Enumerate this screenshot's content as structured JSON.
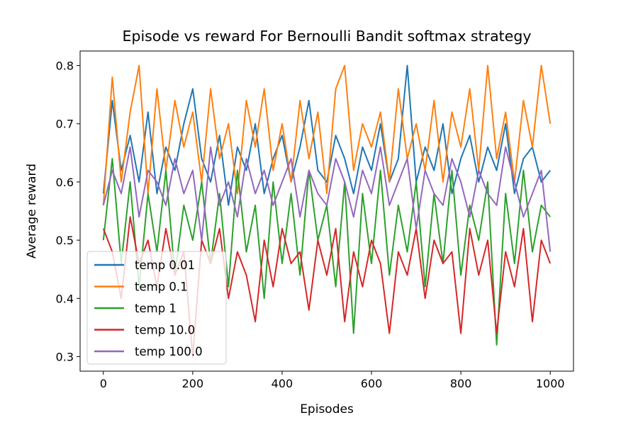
{
  "chart_data": {
    "type": "line",
    "title": "Episode vs reward For Bernoulli Bandit softmax strategy",
    "xlabel": "Episodes",
    "ylabel": "Average reward",
    "xlim": [
      -52,
      1052
    ],
    "ylim": [
      0.275,
      0.825
    ],
    "x_ticks": [
      0,
      200,
      400,
      600,
      800,
      1000
    ],
    "y_ticks": [
      0.3,
      0.4,
      0.5,
      0.6,
      0.7,
      0.8
    ],
    "x_tick_labels": [
      "0",
      "200",
      "400",
      "600",
      "800",
      "1000"
    ],
    "y_tick_labels": [
      "0.3",
      "0.4",
      "0.5",
      "0.6",
      "0.7",
      "0.8"
    ],
    "grid": false,
    "legend_position": "lower-left",
    "x": [
      0,
      20,
      40,
      60,
      80,
      100,
      120,
      140,
      160,
      180,
      200,
      220,
      240,
      260,
      280,
      300,
      320,
      340,
      360,
      380,
      400,
      420,
      440,
      460,
      480,
      500,
      520,
      540,
      560,
      580,
      600,
      620,
      640,
      660,
      680,
      700,
      720,
      740,
      760,
      780,
      800,
      820,
      840,
      860,
      880,
      900,
      920,
      940,
      960,
      980,
      1000
    ],
    "series": [
      {
        "name": "temp 0.01",
        "color": "#1f77b4",
        "values": [
          0.58,
          0.74,
          0.62,
          0.68,
          0.6,
          0.72,
          0.58,
          0.66,
          0.62,
          0.7,
          0.76,
          0.64,
          0.6,
          0.68,
          0.56,
          0.66,
          0.62,
          0.7,
          0.58,
          0.64,
          0.68,
          0.6,
          0.66,
          0.74,
          0.62,
          0.6,
          0.68,
          0.64,
          0.58,
          0.66,
          0.62,
          0.7,
          0.6,
          0.64,
          0.8,
          0.6,
          0.66,
          0.62,
          0.7,
          0.58,
          0.64,
          0.68,
          0.6,
          0.66,
          0.62,
          0.7,
          0.58,
          0.64,
          0.66,
          0.6,
          0.62
        ]
      },
      {
        "name": "temp 0.1",
        "color": "#ff7f0e",
        "values": [
          0.56,
          0.78,
          0.6,
          0.72,
          0.8,
          0.58,
          0.76,
          0.62,
          0.74,
          0.66,
          0.72,
          0.6,
          0.76,
          0.64,
          0.7,
          0.58,
          0.74,
          0.66,
          0.76,
          0.62,
          0.7,
          0.6,
          0.74,
          0.64,
          0.72,
          0.58,
          0.76,
          0.8,
          0.62,
          0.7,
          0.66,
          0.72,
          0.6,
          0.76,
          0.64,
          0.7,
          0.62,
          0.74,
          0.6,
          0.72,
          0.66,
          0.76,
          0.62,
          0.8,
          0.64,
          0.72,
          0.6,
          0.74,
          0.66,
          0.8,
          0.7
        ]
      },
      {
        "name": "temp 1",
        "color": "#2ca02c",
        "values": [
          0.5,
          0.64,
          0.46,
          0.6,
          0.42,
          0.58,
          0.48,
          0.62,
          0.44,
          0.56,
          0.5,
          0.6,
          0.46,
          0.58,
          0.42,
          0.62,
          0.48,
          0.56,
          0.4,
          0.6,
          0.46,
          0.58,
          0.44,
          0.62,
          0.5,
          0.56,
          0.42,
          0.6,
          0.34,
          0.58,
          0.46,
          0.62,
          0.44,
          0.56,
          0.48,
          0.6,
          0.42,
          0.58,
          0.46,
          0.62,
          0.44,
          0.56,
          0.5,
          0.6,
          0.32,
          0.58,
          0.46,
          0.62,
          0.48,
          0.56,
          0.54
        ]
      },
      {
        "name": "temp 10.0",
        "color": "#d62728",
        "values": [
          0.52,
          0.48,
          0.4,
          0.54,
          0.46,
          0.5,
          0.42,
          0.52,
          0.44,
          0.48,
          0.3,
          0.5,
          0.46,
          0.52,
          0.4,
          0.48,
          0.44,
          0.36,
          0.5,
          0.42,
          0.52,
          0.46,
          0.48,
          0.38,
          0.5,
          0.44,
          0.52,
          0.36,
          0.48,
          0.42,
          0.5,
          0.46,
          0.34,
          0.48,
          0.44,
          0.52,
          0.4,
          0.5,
          0.46,
          0.48,
          0.34,
          0.52,
          0.44,
          0.5,
          0.34,
          0.48,
          0.42,
          0.52,
          0.36,
          0.5,
          0.46
        ]
      },
      {
        "name": "temp 100.0",
        "color": "#9467bd",
        "values": [
          0.56,
          0.62,
          0.58,
          0.66,
          0.54,
          0.62,
          0.6,
          0.56,
          0.64,
          0.58,
          0.62,
          0.5,
          0.66,
          0.56,
          0.6,
          0.54,
          0.64,
          0.58,
          0.62,
          0.56,
          0.6,
          0.64,
          0.54,
          0.62,
          0.58,
          0.56,
          0.64,
          0.6,
          0.54,
          0.62,
          0.58,
          0.66,
          0.56,
          0.6,
          0.64,
          0.52,
          0.62,
          0.58,
          0.56,
          0.64,
          0.6,
          0.54,
          0.62,
          0.58,
          0.56,
          0.66,
          0.6,
          0.54,
          0.58,
          0.62,
          0.48
        ]
      }
    ]
  }
}
